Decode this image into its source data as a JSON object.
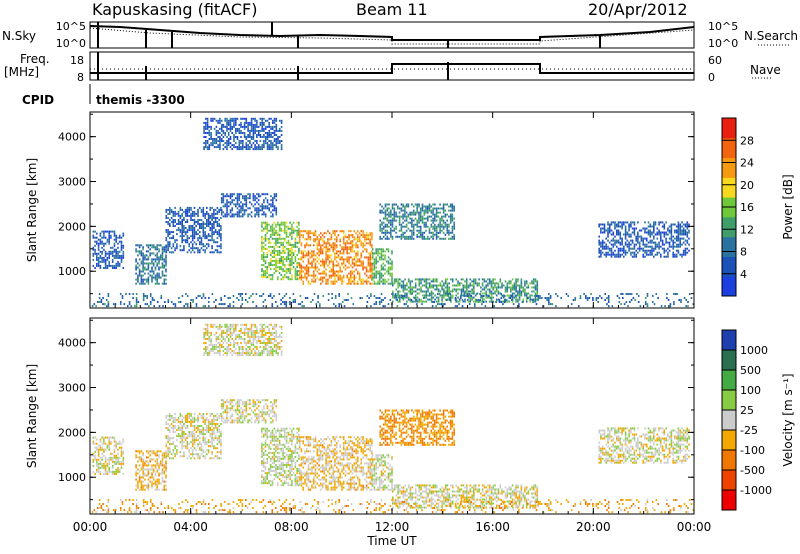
{
  "header": {
    "station": "Kapuskasing (fitACF)",
    "beam": "Beam 11",
    "date": "20/Apr/2012"
  },
  "strip": {
    "nsky_label": "N.Sky",
    "nsearch_label": "N.Search",
    "freq_label": "Freq.",
    "freq_unit": "[MHz]",
    "nave_label": "Nave",
    "cpid_label": "CPID",
    "cpid_value": "themis -3300",
    "left_ticks_top": [
      "10^5",
      "10^0"
    ],
    "right_ticks_top": [
      "10^5",
      "10^0"
    ],
    "left_ticks_freq": [
      "18",
      "8"
    ],
    "right_ticks_nave": [
      "60",
      "0"
    ]
  },
  "colors": {
    "power": [
      "#1c3fe0",
      "#1c51b8",
      "#2a73a0",
      "#3f9e6a",
      "#6ec83a",
      "#f6d81e",
      "#f59a10",
      "#f26410",
      "#e82010"
    ],
    "velocity": [
      "#ee0000",
      "#ee4400",
      "#f07800",
      "#f2a800",
      "#cccccc",
      "#88cc44",
      "#44aa44",
      "#2a7050",
      "#1e3fb0"
    ]
  },
  "chart_data": [
    {
      "type": "heatmap",
      "panel": "power",
      "xlabel": "",
      "ylabel": "Slant Range [km]",
      "x_ticks": [
        "00:00",
        "04:00",
        "08:00",
        "12:00",
        "16:00",
        "20:00",
        "00:00"
      ],
      "xlim_hours": [
        0,
        24
      ],
      "y_ticks": [
        "1000",
        "2000",
        "3000",
        "4000"
      ],
      "ylim_km": [
        180,
        4550
      ],
      "colorbar_label": "Power [dB]",
      "colorbar_ticks": [
        "28",
        "24",
        "20",
        "16",
        "12",
        "8",
        "4"
      ],
      "clim": [
        0,
        32
      ],
      "regions": [
        {
          "t0": 0.1,
          "t1": 1.3,
          "r0": 1050,
          "r1": 1900,
          "value": 6
        },
        {
          "t0": 1.8,
          "t1": 3.0,
          "r0": 700,
          "r1": 1600,
          "value": 9
        },
        {
          "t0": 3.0,
          "t1": 5.2,
          "r0": 1400,
          "r1": 2400,
          "value": 6
        },
        {
          "t0": 5.2,
          "t1": 7.4,
          "r0": 2200,
          "r1": 2700,
          "value": 6
        },
        {
          "t0": 4.5,
          "t1": 7.6,
          "r0": 3700,
          "r1": 4400,
          "value": 6
        },
        {
          "t0": 6.8,
          "t1": 8.3,
          "r0": 800,
          "r1": 2100,
          "value": 16
        },
        {
          "t0": 8.3,
          "t1": 11.2,
          "r0": 700,
          "r1": 1900,
          "value": 24
        },
        {
          "t0": 11.2,
          "t1": 12.0,
          "r0": 700,
          "r1": 1500,
          "value": 14
        },
        {
          "t0": 11.5,
          "t1": 14.5,
          "r0": 1700,
          "r1": 2500,
          "value": 10
        },
        {
          "t0": 12.0,
          "t1": 17.8,
          "r0": 300,
          "r1": 800,
          "value": 12
        },
        {
          "t0": 20.2,
          "t1": 23.8,
          "r0": 1300,
          "r1": 2100,
          "value": 6
        },
        {
          "t0": 0.0,
          "t1": 24.0,
          "r0": 200,
          "r1": 500,
          "value": 8
        }
      ]
    },
    {
      "type": "heatmap",
      "panel": "velocity",
      "xlabel": "Time UT",
      "ylabel": "Slant Range [km]",
      "x_ticks": [
        "00:00",
        "04:00",
        "08:00",
        "12:00",
        "16:00",
        "20:00",
        "00:00"
      ],
      "xlim_hours": [
        0,
        24
      ],
      "y_ticks": [
        "1000",
        "2000",
        "3000",
        "4000"
      ],
      "ylim_km": [
        180,
        4550
      ],
      "colorbar_label": "Velocity [m s⁻¹]",
      "colorbar_ticks": [
        "1000",
        "500",
        "100",
        "25",
        "-25",
        "-100",
        "-500",
        "-1000"
      ],
      "clim": [
        -1200,
        1200
      ],
      "regions": [
        {
          "t0": 0.1,
          "t1": 1.3,
          "r0": 1050,
          "r1": 1900,
          "value": 0
        },
        {
          "t0": 1.8,
          "t1": 3.0,
          "r0": 700,
          "r1": 1600,
          "value": -200
        },
        {
          "t0": 3.0,
          "t1": 5.2,
          "r0": 1400,
          "r1": 2400,
          "value": 0
        },
        {
          "t0": 5.2,
          "t1": 7.4,
          "r0": 2200,
          "r1": 2700,
          "value": 0
        },
        {
          "t0": 4.5,
          "t1": 7.6,
          "r0": 3700,
          "r1": 4400,
          "value": 0
        },
        {
          "t0": 6.8,
          "t1": 8.3,
          "r0": 800,
          "r1": 2100,
          "value": 80
        },
        {
          "t0": 8.3,
          "t1": 11.2,
          "r0": 700,
          "r1": 1900,
          "value": -150
        },
        {
          "t0": 11.2,
          "t1": 12.0,
          "r0": 700,
          "r1": 1500,
          "value": 60
        },
        {
          "t0": 11.5,
          "t1": 14.5,
          "r0": 1700,
          "r1": 2500,
          "value": -400
        },
        {
          "t0": 12.0,
          "t1": 17.8,
          "r0": 300,
          "r1": 800,
          "value": 0
        },
        {
          "t0": 20.2,
          "t1": 23.8,
          "r0": 1300,
          "r1": 2100,
          "value": 0
        },
        {
          "t0": 0.0,
          "t1": 24.0,
          "r0": 200,
          "r1": 500,
          "value": -300
        }
      ]
    }
  ]
}
